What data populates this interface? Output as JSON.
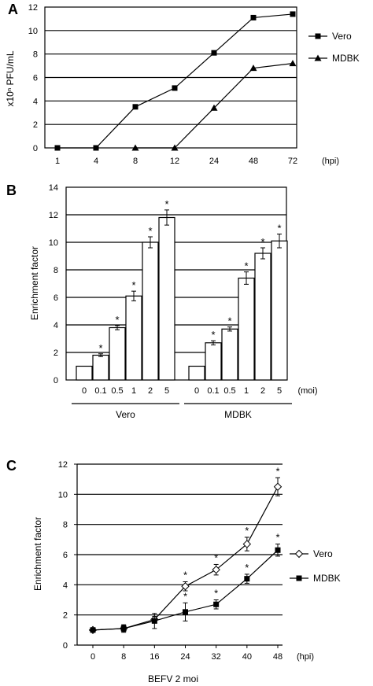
{
  "chart_data": [
    {
      "panel": "A",
      "type": "line",
      "ylabel": "x10ⁿ PFU/mL",
      "x_unit": "(hpi)",
      "categories": [
        "1",
        "4",
        "8",
        "12",
        "24",
        "48",
        "72"
      ],
      "ylim": [
        0,
        12
      ],
      "yticks": [
        0,
        2,
        4,
        6,
        8,
        10,
        12
      ],
      "grid": true,
      "legend_position": "right",
      "series": [
        {
          "name": "Vero",
          "marker": "square",
          "values": [
            0,
            0,
            3.5,
            5.1,
            8.1,
            11.1,
            11.4
          ]
        },
        {
          "name": "MDBK",
          "marker": "triangle",
          "values": [
            null,
            null,
            0,
            0,
            3.4,
            6.8,
            7.2
          ]
        }
      ]
    },
    {
      "panel": "B",
      "type": "bar",
      "ylabel": "Enrichment factor",
      "x_unit": "(moi)",
      "ylim": [
        0,
        14
      ],
      "yticks": [
        0,
        2,
        4,
        6,
        8,
        10,
        12,
        14
      ],
      "grid": true,
      "groups": [
        {
          "name": "Vero",
          "categories": [
            "0",
            "0.1",
            "0.5",
            "1",
            "2",
            "5"
          ],
          "values": [
            1.0,
            1.8,
            3.8,
            6.1,
            10.0,
            11.8
          ],
          "errors": [
            0,
            0.1,
            0.15,
            0.35,
            0.4,
            0.55
          ],
          "significant": [
            false,
            true,
            true,
            true,
            true,
            true
          ]
        },
        {
          "name": "MDBK",
          "categories": [
            "0",
            "0.1",
            "0.5",
            "1",
            "2",
            "5"
          ],
          "values": [
            1.0,
            2.7,
            3.7,
            7.4,
            9.2,
            10.1
          ],
          "errors": [
            0,
            0.15,
            0.15,
            0.45,
            0.4,
            0.5
          ],
          "significant": [
            false,
            true,
            true,
            true,
            true,
            true
          ]
        }
      ],
      "annotation": "*"
    },
    {
      "panel": "C",
      "type": "line",
      "ylabel": "Enrichment factor",
      "xlabel": "BEFV 2 moi",
      "x_unit": "(hpi)",
      "x": [
        0,
        8,
        16,
        24,
        32,
        40,
        48
      ],
      "ylim": [
        0,
        12
      ],
      "yticks": [
        0,
        2,
        4,
        6,
        8,
        10,
        12
      ],
      "grid": true,
      "legend_position": "right",
      "series": [
        {
          "name": "Vero",
          "marker": "open-diamond",
          "values": [
            1.0,
            1.1,
            1.7,
            3.9,
            5.0,
            6.7,
            10.5
          ],
          "errors": [
            0.1,
            0.2,
            0.2,
            0.3,
            0.35,
            0.45,
            0.6
          ],
          "significant": [
            false,
            false,
            false,
            true,
            true,
            true,
            true
          ]
        },
        {
          "name": "MDBK",
          "marker": "filled-square",
          "values": [
            1.0,
            1.1,
            1.6,
            2.2,
            2.7,
            4.4,
            6.3
          ],
          "errors": [
            0.1,
            0.25,
            0.5,
            0.6,
            0.3,
            0.3,
            0.4
          ],
          "significant": [
            false,
            false,
            false,
            true,
            true,
            true,
            true
          ]
        }
      ],
      "annotation": "*"
    }
  ]
}
